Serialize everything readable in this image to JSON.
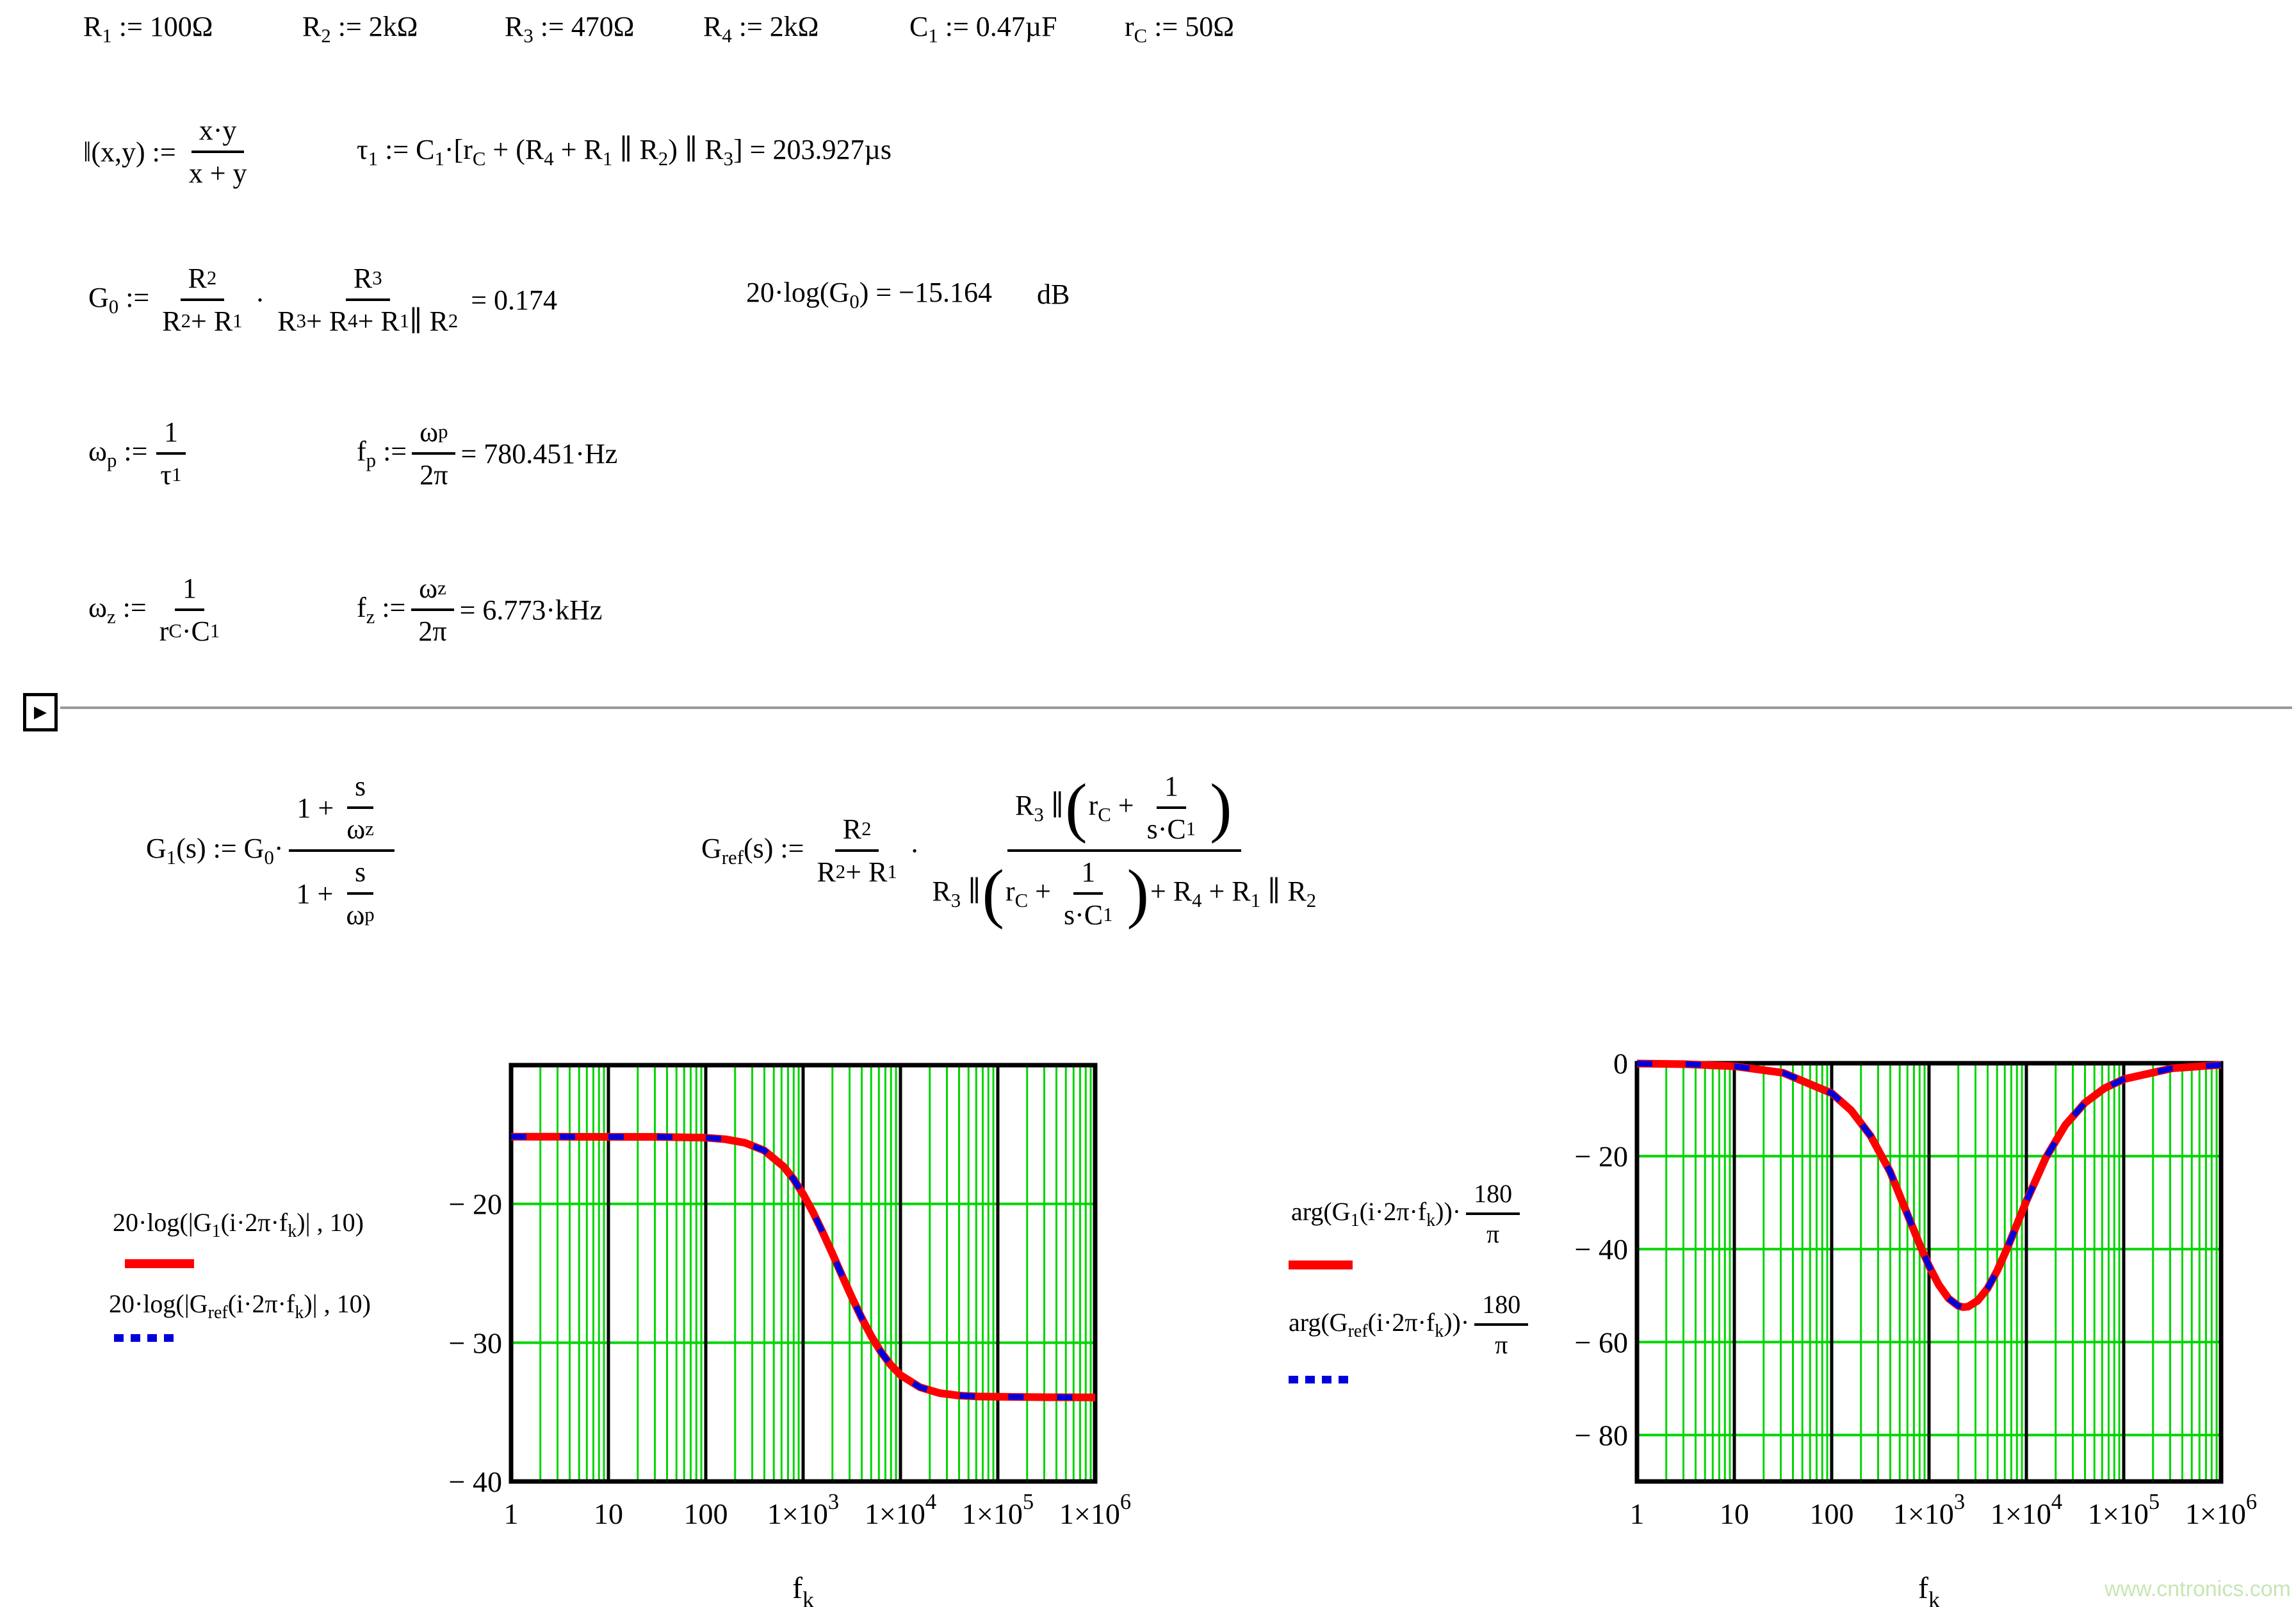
{
  "defs": [
    "R_{1} := 100Ω",
    "R_{2} := 2kΩ",
    "R_{3} := 470Ω",
    "R_{4} := 2kΩ",
    "C_{1} := 0.47µF",
    "r_{C} := 50Ω"
  ],
  "parallel_fn": {
    "lhs": "‖(x,y) :=",
    "num": "x·y",
    "den": "x + y"
  },
  "tau1": "τ_{1} := C_{1}·[r_{C} + (R_{4} + R_{1} ∥ R_{2}) ∥ R_{3}] = 203.927µs",
  "g0": {
    "lhs": "G_{0} :=",
    "f1num": "R_{2}",
    "f1den": "R_{2} + R_{1}",
    "dot": "·",
    "f2num": "R_{3}",
    "f2den": "R_{3} + R_{4} + R_{1} ∥ R_{2}",
    "result": "= 0.174"
  },
  "g0db": {
    "text": "20·log(G_{0}) = −15.164",
    "unit": "dB"
  },
  "wp": {
    "lhs": "ω_{p} :=",
    "num": "1",
    "den": "τ_{1}"
  },
  "fp": {
    "lhs": "f_{p} :=",
    "num": "ω_{p}",
    "den": "2π",
    "result": "= 780.451·Hz"
  },
  "wz": {
    "lhs": "ω_{z} :=",
    "num": "1",
    "den": "r_{C}·C_{1}"
  },
  "fz": {
    "lhs": "f_{z} :=",
    "num": "ω_{z}",
    "den": "2π",
    "result": "= 6.773·kHz"
  },
  "g1": {
    "lhs": "G_{1}(s) := G_{0}·",
    "num_pre": "1 +",
    "num_num": "s",
    "num_den": "ω_{z}",
    "den_pre": "1 +",
    "den_num": "s",
    "den_den": "ω_{p}"
  },
  "gref": {
    "lhs": "G_{ref}(s) :=",
    "f1num": "R_{2}",
    "f1den": "R_{2} + R_{1}",
    "dot": "·",
    "num_pre": "R_{3} ∥",
    "num_inner_pre": "r_{C} +",
    "num_num": "1",
    "num_den": "s·C_{1}",
    "den_pre": "R_{3} ∥",
    "den_inner_pre": "r_{C} +",
    "den_num": "1",
    "den_den": "s·C_{1}",
    "den_post": "+ R_{4} + R_{1} ∥ R_{2}"
  },
  "legend_mag": {
    "line1": "20·log(|G_{1}(i·2π·f_{k})| , 10)",
    "line2": "20·log(|G_{ref}(i·2π·f_{k})| , 10)"
  },
  "legend_phase": {
    "line1_pre": "arg(G_{1}(i·2π·f_{k}))·",
    "line2_pre": "arg(G_{ref}(i·2π·f_{k}))·",
    "num": "180",
    "den": "π"
  },
  "watermark": "www.cntronics.com",
  "colors": {
    "grid": "#00d500",
    "frame": "#000000",
    "series1": "#ff0000",
    "series2": "#0000dd",
    "rule": "#999999"
  },
  "chart_data": [
    {
      "type": "line",
      "x_scale": "log",
      "x_log_range": [
        0,
        6
      ],
      "x_ticks": [
        {
          "v": 0,
          "label": "1"
        },
        {
          "v": 1,
          "label": "10"
        },
        {
          "v": 2,
          "label": "100"
        },
        {
          "v": 3,
          "label": "1×10^{3}"
        },
        {
          "v": 4,
          "label": "1×10^{4}"
        },
        {
          "v": 5,
          "label": "1×10^{5}"
        },
        {
          "v": 6,
          "label": "1×10^{6}"
        }
      ],
      "xlabel": "f_{k}",
      "ylim": [
        -40,
        -10
      ],
      "y_ticks": [
        {
          "v": -20,
          "label": "− 20"
        },
        {
          "v": -30,
          "label": "− 30"
        },
        {
          "v": -40,
          "label": "− 40"
        }
      ],
      "series": [
        {
          "name": "20·log(|G1(i·2π·fk)|,10)",
          "color": "#ff0000",
          "style": "solid",
          "width": 12
        },
        {
          "name": "20·log(|Gref(i·2π·fk)|,10)",
          "color": "#0000dd",
          "style": "dashed",
          "width": 9
        }
      ],
      "logx": [
        0,
        0.5,
        1,
        1.5,
        2,
        2.2,
        2.4,
        2.6,
        2.8,
        2.9,
        3,
        3.1,
        3.2,
        3.3,
        3.35,
        3.4,
        3.5,
        3.6,
        3.7,
        3.8,
        3.9,
        4,
        4.2,
        4.4,
        4.6,
        4.8,
        5,
        5.5,
        6
      ],
      "y": [
        -15.16,
        -15.16,
        -15.17,
        -15.17,
        -15.23,
        -15.34,
        -15.59,
        -16.15,
        -17.31,
        -18.19,
        -19.29,
        -20.58,
        -22.03,
        -23.57,
        -24.37,
        -25.16,
        -26.72,
        -28.19,
        -29.53,
        -30.67,
        -31.6,
        -32.33,
        -33.21,
        -33.63,
        -33.81,
        -33.88,
        -33.9,
        -33.93,
        -33.94
      ]
    },
    {
      "type": "line",
      "x_scale": "log",
      "x_log_range": [
        0,
        6
      ],
      "x_ticks": [
        {
          "v": 0,
          "label": "1"
        },
        {
          "v": 1,
          "label": "10"
        },
        {
          "v": 2,
          "label": "100"
        },
        {
          "v": 3,
          "label": "1×10^{3}"
        },
        {
          "v": 4,
          "label": "1×10^{4}"
        },
        {
          "v": 5,
          "label": "1×10^{5}"
        },
        {
          "v": 6,
          "label": "1×10^{6}"
        }
      ],
      "xlabel": "f_{k}",
      "ylim": [
        -90,
        0
      ],
      "y_ticks": [
        {
          "v": 0,
          "label": "0"
        },
        {
          "v": -20,
          "label": "− 20"
        },
        {
          "v": -40,
          "label": "− 40"
        },
        {
          "v": -60,
          "label": "− 60"
        },
        {
          "v": -80,
          "label": "− 80"
        }
      ],
      "series": [
        {
          "name": "arg(G1(i·2π·fk))·180/π",
          "color": "#ff0000",
          "style": "solid",
          "width": 12
        },
        {
          "name": "arg(Gref(i·2π·fk))·180/π",
          "color": "#0000dd",
          "style": "dashed",
          "width": 9
        }
      ],
      "logx": [
        0,
        0.5,
        1,
        1.5,
        2,
        2.2,
        2.4,
        2.6,
        2.8,
        2.9,
        3,
        3.1,
        3.2,
        3.3,
        3.35,
        3.4,
        3.5,
        3.6,
        3.7,
        3.8,
        3.9,
        4,
        4.2,
        4.4,
        4.6,
        4.8,
        5,
        5.5,
        6
      ],
      "y": [
        -0.07,
        -0.21,
        -0.65,
        -2.05,
        -6.45,
        -10.14,
        -15.65,
        -23.35,
        -33.64,
        -38.81,
        -43.63,
        -47.68,
        -50.61,
        -52.22,
        -52.48,
        -52.39,
        -51.11,
        -48.47,
        -44.65,
        -39.98,
        -34.85,
        -29.66,
        -20.32,
        -13.31,
        -8.54,
        -5.42,
        -3.43,
        -1.09,
        -0.34
      ]
    }
  ]
}
